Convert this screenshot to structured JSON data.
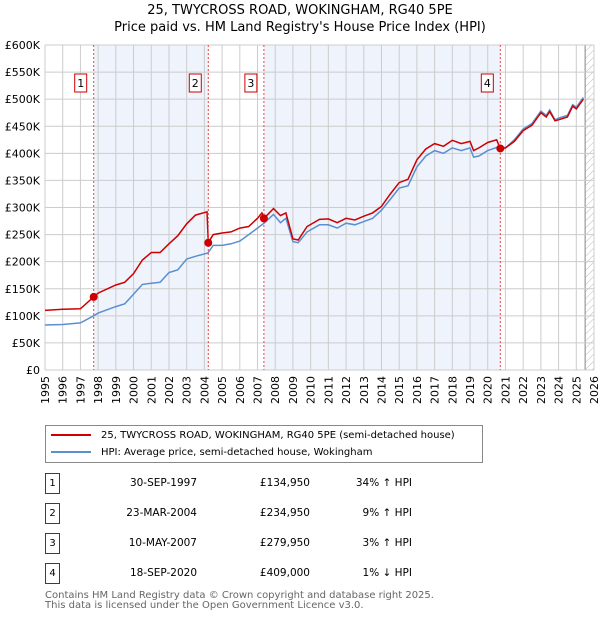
{
  "title_line1": "25, TWYCROSS ROAD, WOKINGHAM, RG40 5PE",
  "title_line2": "Price paid vs. HM Land Registry's House Price Index (HPI)",
  "colors": {
    "property": "#cc0000",
    "hpi": "#5b8fd0",
    "shade": "#eef3fc"
  },
  "chart_data": {
    "type": "line",
    "title": "Price paid vs. HM Land Registry's House Price Index (HPI)",
    "xlim": [
      1995,
      2026
    ],
    "ylim": [
      0,
      600000
    ],
    "grid": true,
    "x_ticks": [
      "1995",
      "1996",
      "1997",
      "1998",
      "1999",
      "2000",
      "2001",
      "2002",
      "2003",
      "2004",
      "2005",
      "2006",
      "2007",
      "2008",
      "2009",
      "2010",
      "2011",
      "2012",
      "2013",
      "2014",
      "2015",
      "2016",
      "2017",
      "2018",
      "2019",
      "2020",
      "2021",
      "2022",
      "2023",
      "2024",
      "2025",
      "2026"
    ],
    "y_ticks": [
      "£0",
      "£50K",
      "£100K",
      "£150K",
      "£200K",
      "£250K",
      "£300K",
      "£350K",
      "£400K",
      "£450K",
      "£500K",
      "£550K",
      "£600K"
    ],
    "series": [
      {
        "name": "25, TWYCROSS ROAD, WOKINGHAM, RG40 5PE (semi-detached house)",
        "points": [
          [
            1995,
            110
          ],
          [
            1996,
            112
          ],
          [
            1997,
            113
          ],
          [
            1997.75,
            134.95
          ],
          [
            1998,
            142
          ],
          [
            1999,
            157
          ],
          [
            1999.5,
            162
          ],
          [
            2000,
            178
          ],
          [
            2000.5,
            203
          ],
          [
            2001,
            217
          ],
          [
            2001.5,
            217
          ],
          [
            2002,
            233
          ],
          [
            2002.5,
            248
          ],
          [
            2003,
            270
          ],
          [
            2003.5,
            286
          ],
          [
            2004.15,
            292
          ],
          [
            2004.22,
            234.95
          ],
          [
            2004.5,
            250
          ],
          [
            2005,
            253
          ],
          [
            2005.5,
            255
          ],
          [
            2006,
            262
          ],
          [
            2006.5,
            265
          ],
          [
            2007,
            280
          ],
          [
            2007.25,
            290
          ],
          [
            2007.36,
            279.95
          ],
          [
            2007.9,
            298
          ],
          [
            2008.3,
            285
          ],
          [
            2008.6,
            290
          ],
          [
            2009,
            242
          ],
          [
            2009.3,
            240
          ],
          [
            2009.8,
            265
          ],
          [
            2010.5,
            278
          ],
          [
            2011,
            279
          ],
          [
            2011.5,
            272
          ],
          [
            2012,
            280
          ],
          [
            2012.5,
            277
          ],
          [
            2013,
            284
          ],
          [
            2013.5,
            290
          ],
          [
            2014,
            302
          ],
          [
            2014.5,
            325
          ],
          [
            2015,
            346
          ],
          [
            2015.5,
            352
          ],
          [
            2016,
            388
          ],
          [
            2016.5,
            408
          ],
          [
            2017,
            418
          ],
          [
            2017.5,
            413
          ],
          [
            2018,
            424
          ],
          [
            2018.5,
            418
          ],
          [
            2019,
            422
          ],
          [
            2019.2,
            405
          ],
          [
            2019.5,
            410
          ],
          [
            2020,
            420
          ],
          [
            2020.5,
            425
          ],
          [
            2020.71,
            409
          ],
          [
            2021,
            410
          ],
          [
            2021.5,
            422
          ],
          [
            2022,
            442
          ],
          [
            2022.5,
            452
          ],
          [
            2023,
            475
          ],
          [
            2023.3,
            467
          ],
          [
            2023.5,
            477
          ],
          [
            2023.8,
            460
          ],
          [
            2024,
            462
          ],
          [
            2024.5,
            467
          ],
          [
            2024.8,
            487
          ],
          [
            2025,
            482
          ],
          [
            2025.4,
            500
          ]
        ]
      },
      {
        "name": "HPI: Average price, semi-detached house, Wokingham",
        "points": [
          [
            1995,
            83
          ],
          [
            1996,
            84
          ],
          [
            1997,
            87
          ],
          [
            1997.75,
            100
          ],
          [
            1998,
            105
          ],
          [
            1999,
            117
          ],
          [
            1999.5,
            122
          ],
          [
            2000,
            140
          ],
          [
            2000.5,
            158
          ],
          [
            2001,
            160
          ],
          [
            2001.5,
            162
          ],
          [
            2002,
            180
          ],
          [
            2002.5,
            185
          ],
          [
            2003,
            205
          ],
          [
            2003.5,
            210
          ],
          [
            2004.2,
            216
          ],
          [
            2004.5,
            230
          ],
          [
            2005,
            230
          ],
          [
            2005.5,
            233
          ],
          [
            2006,
            238
          ],
          [
            2006.5,
            250
          ],
          [
            2007,
            262
          ],
          [
            2007.4,
            272
          ],
          [
            2007.9,
            287
          ],
          [
            2008.3,
            272
          ],
          [
            2008.6,
            280
          ],
          [
            2009,
            237
          ],
          [
            2009.3,
            235
          ],
          [
            2009.8,
            255
          ],
          [
            2010.5,
            268
          ],
          [
            2011,
            268
          ],
          [
            2011.5,
            262
          ],
          [
            2012,
            271
          ],
          [
            2012.5,
            268
          ],
          [
            2013,
            274
          ],
          [
            2013.5,
            280
          ],
          [
            2014,
            295
          ],
          [
            2014.5,
            315
          ],
          [
            2015,
            336
          ],
          [
            2015.5,
            340
          ],
          [
            2016,
            375
          ],
          [
            2016.5,
            395
          ],
          [
            2017,
            405
          ],
          [
            2017.5,
            400
          ],
          [
            2018,
            410
          ],
          [
            2018.5,
            405
          ],
          [
            2019,
            410
          ],
          [
            2019.2,
            393
          ],
          [
            2019.5,
            395
          ],
          [
            2020,
            405
          ],
          [
            2020.7,
            413
          ],
          [
            2021,
            410
          ],
          [
            2021.5,
            425
          ],
          [
            2022,
            445
          ],
          [
            2022.5,
            455
          ],
          [
            2023,
            478
          ],
          [
            2023.3,
            470
          ],
          [
            2023.5,
            480
          ],
          [
            2023.8,
            462
          ],
          [
            2024,
            465
          ],
          [
            2024.5,
            470
          ],
          [
            2024.8,
            490
          ],
          [
            2025,
            485
          ],
          [
            2025.4,
            503
          ]
        ]
      }
    ],
    "sales": [
      {
        "label": "1",
        "x": 1997.75,
        "y": 134.95
      },
      {
        "label": "2",
        "x": 2004.22,
        "y": 234.95
      },
      {
        "label": "3",
        "x": 2007.36,
        "y": 279.95
      },
      {
        "label": "4",
        "x": 2020.71,
        "y": 409
      }
    ],
    "y_units": "£K",
    "hatched_from": 2025.5
  },
  "legend": {
    "property": "25, TWYCROSS ROAD, WOKINGHAM, RG40 5PE (semi-detached house)",
    "hpi": "HPI: Average price, semi-detached house, Wokingham"
  },
  "transactions": [
    {
      "num": "1",
      "date": "30-SEP-1997",
      "price": "£134,950",
      "hpi": "34% ↑ HPI"
    },
    {
      "num": "2",
      "date": "23-MAR-2004",
      "price": "£234,950",
      "hpi": "9% ↑ HPI"
    },
    {
      "num": "3",
      "date": "10-MAY-2007",
      "price": "£279,950",
      "hpi": "3% ↑ HPI"
    },
    {
      "num": "4",
      "date": "18-SEP-2020",
      "price": "£409,000",
      "hpi": "1% ↓ HPI"
    }
  ],
  "footer": {
    "line1": "Contains HM Land Registry data © Crown copyright and database right 2025.",
    "line2": "This data is licensed under the Open Government Licence v3.0."
  }
}
